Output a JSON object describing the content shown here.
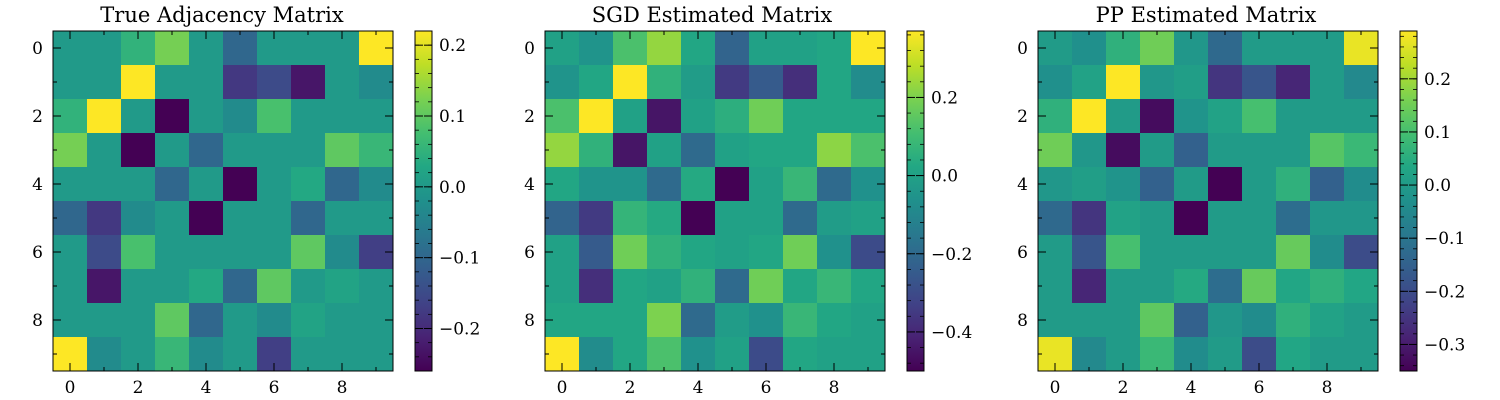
{
  "chart_data": [
    {
      "type": "heatmap",
      "title": "True Adjacency Matrix",
      "x": [
        0,
        1,
        2,
        3,
        4,
        5,
        6,
        7,
        8,
        9
      ],
      "y": [
        0,
        1,
        2,
        3,
        4,
        5,
        6,
        7,
        8,
        9
      ],
      "xticks": [
        0,
        2,
        4,
        6,
        8
      ],
      "yticks": [
        0,
        2,
        4,
        6,
        8
      ],
      "colormap": "viridis",
      "vmin": -0.26,
      "vmax": 0.22,
      "colorbar_ticks": [
        0.2,
        0.1,
        0.0,
        -0.1,
        -0.2
      ],
      "colorbar_labels": [
        "0.2",
        "0.1",
        "0.0",
        "−0.1",
        "−0.2"
      ],
      "values": [
        [
          0.0,
          0.0,
          0.05,
          0.12,
          0.0,
          -0.1,
          0.0,
          0.0,
          0.0,
          0.22
        ],
        [
          0.0,
          0.0,
          0.22,
          0.0,
          0.0,
          -0.18,
          -0.15,
          -0.23,
          0.0,
          -0.03
        ],
        [
          0.05,
          0.22,
          0.0,
          -0.26,
          0.0,
          -0.03,
          0.08,
          0.0,
          0.0,
          0.0
        ],
        [
          0.12,
          0.0,
          -0.26,
          0.0,
          -0.1,
          0.0,
          0.0,
          0.0,
          0.1,
          0.06
        ],
        [
          0.0,
          0.0,
          0.0,
          -0.1,
          0.0,
          -0.26,
          0.0,
          0.03,
          -0.1,
          -0.03
        ],
        [
          -0.1,
          -0.18,
          -0.03,
          0.0,
          -0.26,
          0.0,
          0.0,
          -0.1,
          0.0,
          0.0
        ],
        [
          0.0,
          -0.15,
          0.08,
          0.0,
          0.0,
          0.0,
          0.0,
          0.1,
          -0.03,
          -0.17
        ],
        [
          0.0,
          -0.23,
          0.0,
          0.0,
          0.03,
          -0.1,
          0.1,
          0.0,
          0.02,
          0.0
        ],
        [
          0.0,
          0.0,
          0.0,
          0.1,
          -0.1,
          0.0,
          -0.03,
          0.02,
          0.0,
          0.0
        ],
        [
          0.22,
          -0.03,
          0.0,
          0.06,
          -0.03,
          0.0,
          -0.17,
          0.0,
          0.0,
          0.0
        ]
      ]
    },
    {
      "type": "heatmap",
      "title": "SGD Estimated Matrix",
      "x": [
        0,
        1,
        2,
        3,
        4,
        5,
        6,
        7,
        8,
        9
      ],
      "y": [
        0,
        1,
        2,
        3,
        4,
        5,
        6,
        7,
        8,
        9
      ],
      "xticks": [
        0,
        2,
        4,
        6,
        8
      ],
      "yticks": [
        0,
        2,
        4,
        6,
        8
      ],
      "colormap": "viridis",
      "vmin": -0.5,
      "vmax": 0.37,
      "colorbar_ticks": [
        0.2,
        0.0,
        -0.2,
        -0.4
      ],
      "colorbar_labels": [
        "0.2",
        "0.0",
        "−0.2",
        "−0.4"
      ],
      "values": [
        [
          0.0,
          -0.05,
          0.12,
          0.23,
          0.02,
          -0.22,
          0.0,
          0.0,
          0.02,
          0.37
        ],
        [
          -0.05,
          0.02,
          0.37,
          0.06,
          -0.02,
          -0.35,
          -0.25,
          -0.38,
          0.02,
          -0.08
        ],
        [
          0.12,
          0.37,
          0.0,
          -0.45,
          0.0,
          0.05,
          0.18,
          0.02,
          0.02,
          0.02
        ],
        [
          0.23,
          0.06,
          -0.45,
          0.0,
          -0.2,
          0.0,
          0.02,
          0.02,
          0.22,
          0.12
        ],
        [
          0.02,
          -0.05,
          -0.05,
          -0.2,
          0.03,
          -0.5,
          0.0,
          0.08,
          -0.2,
          -0.06
        ],
        [
          -0.22,
          -0.35,
          0.07,
          0.03,
          -0.5,
          0.0,
          0.0,
          -0.2,
          -0.02,
          0.0
        ],
        [
          0.0,
          -0.25,
          0.18,
          0.06,
          0.02,
          0.0,
          0.02,
          0.18,
          -0.06,
          -0.3
        ],
        [
          0.0,
          -0.38,
          0.02,
          0.0,
          0.06,
          -0.2,
          0.18,
          0.02,
          0.08,
          0.02
        ],
        [
          0.02,
          0.02,
          0.02,
          0.2,
          -0.2,
          -0.02,
          -0.06,
          0.08,
          0.02,
          0.0
        ],
        [
          0.37,
          -0.08,
          0.02,
          0.12,
          -0.06,
          0.0,
          -0.3,
          0.02,
          0.0,
          0.0
        ]
      ]
    },
    {
      "type": "heatmap",
      "title": "PP Estimated Matrix",
      "x": [
        0,
        1,
        2,
        3,
        4,
        5,
        6,
        7,
        8,
        9
      ],
      "y": [
        0,
        1,
        2,
        3,
        4,
        5,
        6,
        7,
        8,
        9
      ],
      "xticks": [
        0,
        2,
        4,
        6,
        8
      ],
      "yticks": [
        0,
        2,
        4,
        6,
        8
      ],
      "colormap": "viridis",
      "vmin": -0.35,
      "vmax": 0.29,
      "colorbar_ticks": [
        0.2,
        0.1,
        0.0,
        -0.1,
        -0.2,
        -0.3
      ],
      "colorbar_labels": [
        "0.2",
        "0.1",
        "0.0",
        "−0.1",
        "−0.2",
        "−0.3"
      ],
      "values": [
        [
          0.0,
          -0.03,
          0.06,
          0.15,
          -0.01,
          -0.13,
          0.0,
          0.0,
          0.0,
          0.27
        ],
        [
          -0.03,
          0.02,
          0.29,
          -0.01,
          0.01,
          -0.25,
          -0.18,
          -0.28,
          0.0,
          -0.05
        ],
        [
          0.06,
          0.29,
          0.0,
          -0.33,
          -0.02,
          0.02,
          0.1,
          0.0,
          0.0,
          0.0
        ],
        [
          0.15,
          -0.01,
          -0.33,
          0.0,
          -0.15,
          0.0,
          0.0,
          0.0,
          0.12,
          0.08
        ],
        [
          -0.01,
          0.01,
          -0.02,
          -0.15,
          0.0,
          -0.35,
          0.0,
          0.06,
          -0.15,
          -0.04
        ],
        [
          -0.13,
          -0.25,
          0.02,
          0.0,
          -0.35,
          0.0,
          0.0,
          -0.12,
          -0.01,
          -0.01
        ],
        [
          0.0,
          -0.18,
          0.1,
          0.0,
          0.0,
          0.0,
          0.0,
          0.14,
          -0.04,
          -0.2
        ],
        [
          0.0,
          -0.28,
          0.0,
          0.0,
          0.04,
          -0.12,
          0.14,
          0.03,
          0.06,
          0.03
        ],
        [
          0.0,
          0.0,
          0.0,
          0.13,
          -0.15,
          -0.01,
          -0.04,
          0.06,
          0.02,
          0.0
        ],
        [
          0.27,
          -0.05,
          0.0,
          0.08,
          -0.04,
          0.0,
          -0.2,
          0.03,
          0.0,
          0.0
        ]
      ]
    }
  ]
}
